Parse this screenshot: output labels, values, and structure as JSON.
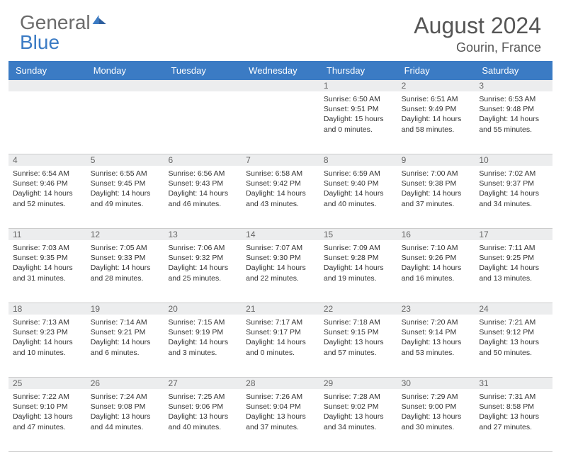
{
  "logo": {
    "word1": "General",
    "word2": "Blue"
  },
  "header": {
    "title": "August 2024",
    "location": "Gourin, France"
  },
  "colors": {
    "header_bar": "#3b7bc4",
    "day_number_bg": "#ecedee",
    "text": "#333333",
    "title_text": "#555555",
    "logo_gray": "#6b6b6b"
  },
  "day_names": [
    "Sunday",
    "Monday",
    "Tuesday",
    "Wednesday",
    "Thursday",
    "Friday",
    "Saturday"
  ],
  "weeks": [
    {
      "numbers": [
        "",
        "",
        "",
        "",
        "1",
        "2",
        "3"
      ],
      "cells": [
        "",
        "",
        "",
        "",
        "Sunrise: 6:50 AM\nSunset: 9:51 PM\nDaylight: 15 hours and 0 minutes.",
        "Sunrise: 6:51 AM\nSunset: 9:49 PM\nDaylight: 14 hours and 58 minutes.",
        "Sunrise: 6:53 AM\nSunset: 9:48 PM\nDaylight: 14 hours and 55 minutes."
      ]
    },
    {
      "numbers": [
        "4",
        "5",
        "6",
        "7",
        "8",
        "9",
        "10"
      ],
      "cells": [
        "Sunrise: 6:54 AM\nSunset: 9:46 PM\nDaylight: 14 hours and 52 minutes.",
        "Sunrise: 6:55 AM\nSunset: 9:45 PM\nDaylight: 14 hours and 49 minutes.",
        "Sunrise: 6:56 AM\nSunset: 9:43 PM\nDaylight: 14 hours and 46 minutes.",
        "Sunrise: 6:58 AM\nSunset: 9:42 PM\nDaylight: 14 hours and 43 minutes.",
        "Sunrise: 6:59 AM\nSunset: 9:40 PM\nDaylight: 14 hours and 40 minutes.",
        "Sunrise: 7:00 AM\nSunset: 9:38 PM\nDaylight: 14 hours and 37 minutes.",
        "Sunrise: 7:02 AM\nSunset: 9:37 PM\nDaylight: 14 hours and 34 minutes."
      ]
    },
    {
      "numbers": [
        "11",
        "12",
        "13",
        "14",
        "15",
        "16",
        "17"
      ],
      "cells": [
        "Sunrise: 7:03 AM\nSunset: 9:35 PM\nDaylight: 14 hours and 31 minutes.",
        "Sunrise: 7:05 AM\nSunset: 9:33 PM\nDaylight: 14 hours and 28 minutes.",
        "Sunrise: 7:06 AM\nSunset: 9:32 PM\nDaylight: 14 hours and 25 minutes.",
        "Sunrise: 7:07 AM\nSunset: 9:30 PM\nDaylight: 14 hours and 22 minutes.",
        "Sunrise: 7:09 AM\nSunset: 9:28 PM\nDaylight: 14 hours and 19 minutes.",
        "Sunrise: 7:10 AM\nSunset: 9:26 PM\nDaylight: 14 hours and 16 minutes.",
        "Sunrise: 7:11 AM\nSunset: 9:25 PM\nDaylight: 14 hours and 13 minutes."
      ]
    },
    {
      "numbers": [
        "18",
        "19",
        "20",
        "21",
        "22",
        "23",
        "24"
      ],
      "cells": [
        "Sunrise: 7:13 AM\nSunset: 9:23 PM\nDaylight: 14 hours and 10 minutes.",
        "Sunrise: 7:14 AM\nSunset: 9:21 PM\nDaylight: 14 hours and 6 minutes.",
        "Sunrise: 7:15 AM\nSunset: 9:19 PM\nDaylight: 14 hours and 3 minutes.",
        "Sunrise: 7:17 AM\nSunset: 9:17 PM\nDaylight: 14 hours and 0 minutes.",
        "Sunrise: 7:18 AM\nSunset: 9:15 PM\nDaylight: 13 hours and 57 minutes.",
        "Sunrise: 7:20 AM\nSunset: 9:14 PM\nDaylight: 13 hours and 53 minutes.",
        "Sunrise: 7:21 AM\nSunset: 9:12 PM\nDaylight: 13 hours and 50 minutes."
      ]
    },
    {
      "numbers": [
        "25",
        "26",
        "27",
        "28",
        "29",
        "30",
        "31"
      ],
      "cells": [
        "Sunrise: 7:22 AM\nSunset: 9:10 PM\nDaylight: 13 hours and 47 minutes.",
        "Sunrise: 7:24 AM\nSunset: 9:08 PM\nDaylight: 13 hours and 44 minutes.",
        "Sunrise: 7:25 AM\nSunset: 9:06 PM\nDaylight: 13 hours and 40 minutes.",
        "Sunrise: 7:26 AM\nSunset: 9:04 PM\nDaylight: 13 hours and 37 minutes.",
        "Sunrise: 7:28 AM\nSunset: 9:02 PM\nDaylight: 13 hours and 34 minutes.",
        "Sunrise: 7:29 AM\nSunset: 9:00 PM\nDaylight: 13 hours and 30 minutes.",
        "Sunrise: 7:31 AM\nSunset: 8:58 PM\nDaylight: 13 hours and 27 minutes."
      ]
    }
  ]
}
